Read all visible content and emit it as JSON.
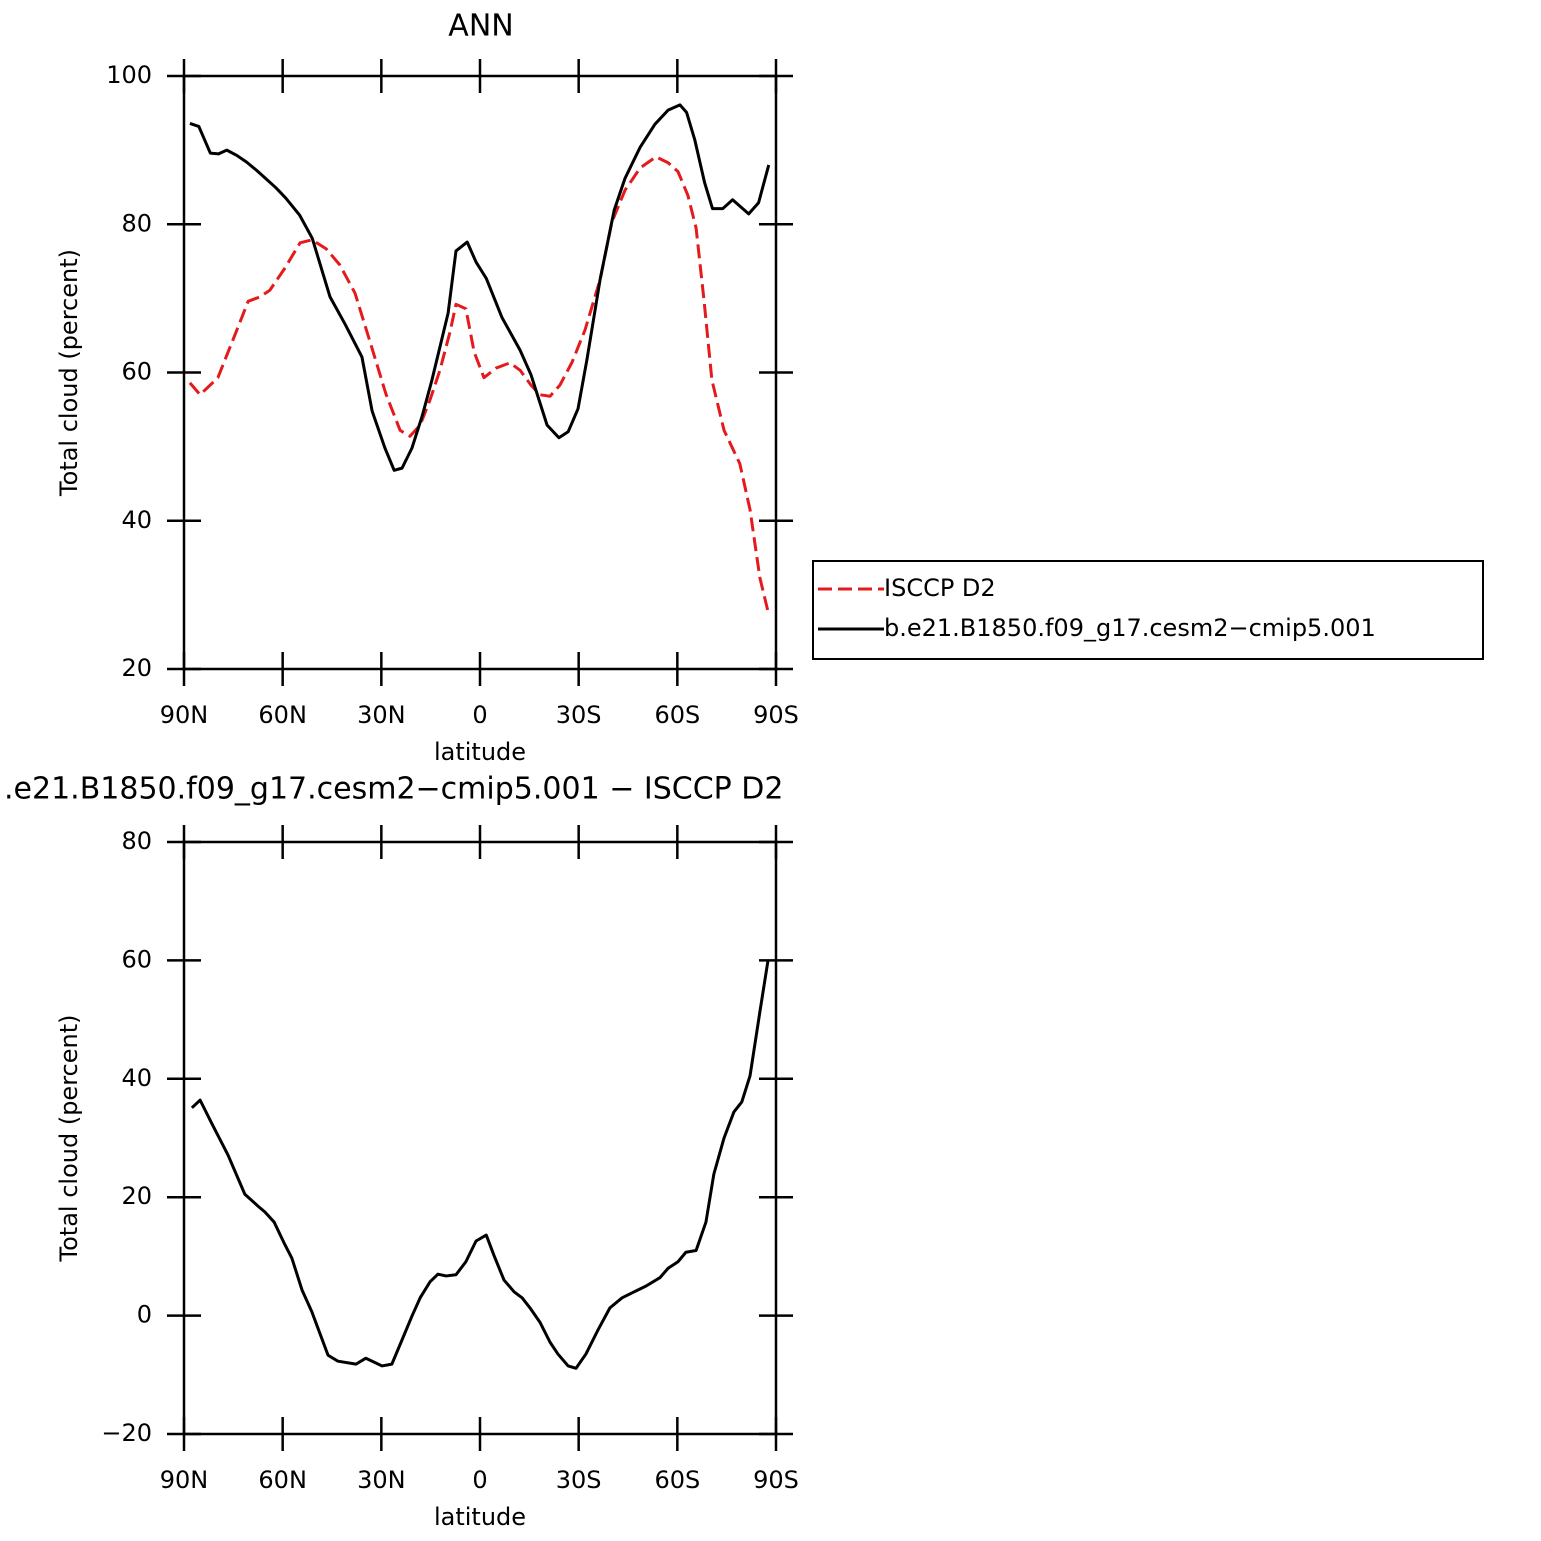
{
  "chart_data": [
    {
      "type": "line",
      "title": "ANN",
      "xlabel": "latitude",
      "ylabel": "Total cloud (percent)",
      "xlim": [
        90,
        -90
      ],
      "ylim": [
        20,
        100
      ],
      "xticks": [
        {
          "value": 90,
          "label": "90N"
        },
        {
          "value": 60,
          "label": "60N"
        },
        {
          "value": 30,
          "label": "30N"
        },
        0,
        {
          "value": -30,
          "label": "30S"
        },
        {
          "value": -60,
          "label": "60S"
        },
        {
          "value": -90,
          "label": "90S"
        }
      ],
      "yticks": [
        20,
        40,
        60,
        80,
        100
      ],
      "legend": "right",
      "series": [
        {
          "name": "ISCCP D2",
          "color": "#e41a1c",
          "style": "dashed",
          "x": [
            88.2,
            85.1,
            79.7,
            73.6,
            70.5,
            66.9,
            63.9,
            59.3,
            54.7,
            51.1,
            46.8,
            42.6,
            38,
            33.4,
            28.6,
            24.3,
            21.3,
            18.2,
            15.2,
            12.2,
            9.1,
            7.3,
            4.3,
            1.8,
            -1.2,
            -4.9,
            -9.1,
            -12.2,
            -15.5,
            -18.2,
            -21.3,
            -24.3,
            -28,
            -31.9,
            -36.5,
            -40.1,
            -44.1,
            -48.7,
            -53.5,
            -57.2,
            -60.2,
            -63.2,
            -65.7,
            -68.1,
            -70.5,
            -74.2,
            -79,
            -82.1,
            -85.1,
            -87.6
          ],
          "values": [
            58.6,
            57,
            59.3,
            66.1,
            69.6,
            70.2,
            71.1,
            74.1,
            77.5,
            77.9,
            76.7,
            74.5,
            70.7,
            64.1,
            57.1,
            52.2,
            51.4,
            52.9,
            56.3,
            60.3,
            65.5,
            69.2,
            68.6,
            62.8,
            59.3,
            60.6,
            61.3,
            60.3,
            58.3,
            57,
            56.8,
            58.3,
            61.4,
            65.7,
            72.5,
            80.3,
            84.6,
            87.6,
            89.1,
            88.3,
            87.1,
            83.9,
            79.5,
            69.8,
            59,
            52.2,
            47.7,
            41.5,
            32.3,
            27.7
          ]
        },
        {
          "name": "b.e21.B1850.f09_g17.cesm2−cmip5.001",
          "color": "#000000",
          "style": "solid",
          "x": [
            88.2,
            85.5,
            82,
            79.5,
            77,
            74,
            71,
            68,
            65,
            62,
            59,
            54.8,
            51,
            45.6,
            41,
            35.9,
            32.8,
            28.9,
            26.1,
            23.7,
            20.7,
            17.6,
            14.6,
            9.7,
            7.3,
            3.9,
            1.2,
            -1.9,
            -6.7,
            -12.2,
            -15.5,
            -20.4,
            -24,
            -26.8,
            -29.8,
            -32.5,
            -36.5,
            -40.8,
            -44.1,
            -48.7,
            -53.2,
            -57.2,
            -60.8,
            -62.8,
            -65.3,
            -68.3,
            -70.7,
            -73.8,
            -76.8,
            -81.7,
            -84.7,
            -87.8
          ],
          "values": [
            93.6,
            93.2,
            89.6,
            89.5,
            90,
            89.3,
            88.4,
            87.3,
            86.1,
            84.9,
            83.5,
            81.2,
            78.1,
            70.2,
            66.5,
            62.1,
            54.8,
            49.8,
            46.8,
            47.1,
            49.8,
            54.1,
            59,
            68,
            76.4,
            77.6,
            74.9,
            72.7,
            67.4,
            63,
            59.7,
            52.9,
            51.2,
            52,
            55.1,
            61.7,
            72.5,
            81.9,
            86.2,
            90.4,
            93.5,
            95.4,
            96.1,
            95.1,
            91.4,
            85.6,
            82.1,
            82.1,
            83.3,
            81.4,
            82.9,
            88
          ]
        }
      ]
    },
    {
      "type": "line",
      "title": ".e21.B1850.f09_g17.cesm2−cmip5.001 − ISCCP D2",
      "xlabel": "latitude",
      "ylabel": "Total cloud (percent)",
      "xlim": [
        90,
        -90
      ],
      "ylim": [
        -20,
        80
      ],
      "xticks": [
        {
          "value": 90,
          "label": "90N"
        },
        {
          "value": 60,
          "label": "60N"
        },
        {
          "value": 30,
          "label": "30N"
        },
        0,
        {
          "value": -30,
          "label": "30S"
        },
        {
          "value": -60,
          "label": "60S"
        },
        {
          "value": -90,
          "label": "90S"
        }
      ],
      "yticks": [
        {
          "value": -20,
          "label": "−20"
        },
        0,
        20,
        40,
        60,
        80
      ],
      "series": [
        {
          "color": "#000000",
          "style": "solid",
          "x": [
            87.6,
            85.1,
            81.5,
            76.6,
            71.5,
            67.5,
            65.4,
            62.6,
            59.6,
            57.2,
            54.1,
            51.1,
            46.2,
            43.2,
            37.7,
            34.7,
            29.8,
            26.8,
            23.7,
            20.7,
            18.2,
            15.2,
            12.8,
            10.3,
            7.3,
            4.3,
            1.2,
            -1.9,
            -4.3,
            -7.3,
            -10.4,
            -12.8,
            -15.2,
            -18.2,
            -21.3,
            -23.7,
            -26.8,
            -29.2,
            -32.2,
            -35.9,
            -39.5,
            -43.2,
            -46.8,
            -50.5,
            -54.7,
            -57.2,
            -60.2,
            -62.6,
            -65.7,
            -68.7,
            -71.1,
            -74.2,
            -77.2,
            -79.6,
            -82.1,
            -85.1,
            -87.6
          ],
          "values": [
            35.1,
            36.4,
            32.4,
            27.1,
            20.5,
            18.5,
            17.5,
            15.8,
            12.3,
            9.7,
            4.3,
            0.6,
            -6.7,
            -7.7,
            -8.2,
            -7.2,
            -8.5,
            -8.2,
            -4.1,
            -0.1,
            3,
            5.7,
            7,
            6.7,
            6.9,
            9.1,
            12.6,
            13.6,
            10.1,
            6,
            4,
            3,
            1.3,
            -1.1,
            -4.5,
            -6.5,
            -8.5,
            -8.9,
            -6.5,
            -2.4,
            1.3,
            3,
            4,
            5,
            6.4,
            8,
            9.1,
            10.7,
            11,
            15.8,
            23.9,
            30,
            34.4,
            36.1,
            40.5,
            51.3,
            60.1
          ]
        }
      ]
    }
  ]
}
